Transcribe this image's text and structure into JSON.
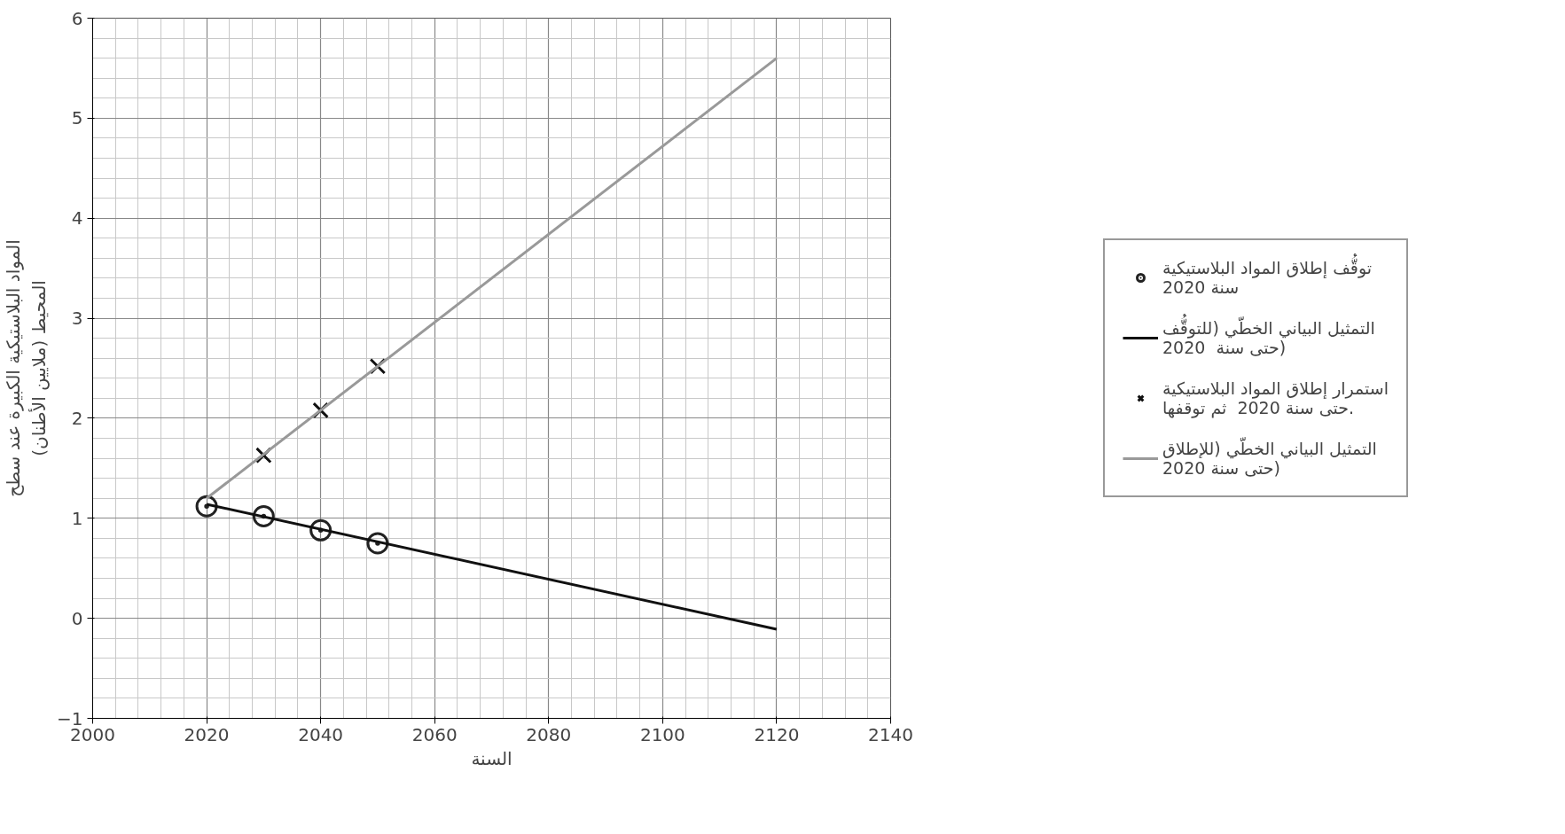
{
  "chart_data": {
    "type": "line",
    "xlabel": "السنة",
    "ylabel": "المواد البلاستيكية الكبيرة عند سطح\nالمحيط (ملايين الأطنان)",
    "xlim": [
      2000,
      2140
    ],
    "xticks": [
      2000,
      2020,
      2040,
      2060,
      2080,
      2100,
      2120,
      2140
    ],
    "ylim": [
      -1,
      6
    ],
    "yticks": [
      -1,
      0,
      1,
      2,
      3,
      4,
      5,
      6
    ],
    "grid": true,
    "legend": "right",
    "series": [
      {
        "name": "توقُّف إطلاق المواد البلاستيكية\nسنة 2020",
        "type": "scatter",
        "marker": "circle",
        "color": "#222222",
        "x": [
          2020,
          2030,
          2040,
          2050
        ],
        "values": [
          1.12,
          1.02,
          0.88,
          0.75
        ]
      },
      {
        "name": "التمثيل البياني الخطّي (للتوقُّف\nحتى سنة  2020)",
        "color": "#111111",
        "x": [
          2020,
          2120
        ],
        "values": [
          1.14,
          -0.11
        ]
      },
      {
        "name": "استمرار إطلاق المواد البلاستيكية\nحتى سنة 2020  ثم توقفها.",
        "type": "scatter",
        "marker": "cross",
        "color": "#111111",
        "x": [
          2030,
          2040,
          2050
        ],
        "values": [
          1.63,
          2.08,
          2.52
        ]
      },
      {
        "name": "التمثيل البياني الخطّي (للإطلاق\nحتى سنة 2020)",
        "color": "#999999",
        "x": [
          2020,
          2120
        ],
        "values": [
          1.2,
          5.6
        ]
      }
    ]
  }
}
